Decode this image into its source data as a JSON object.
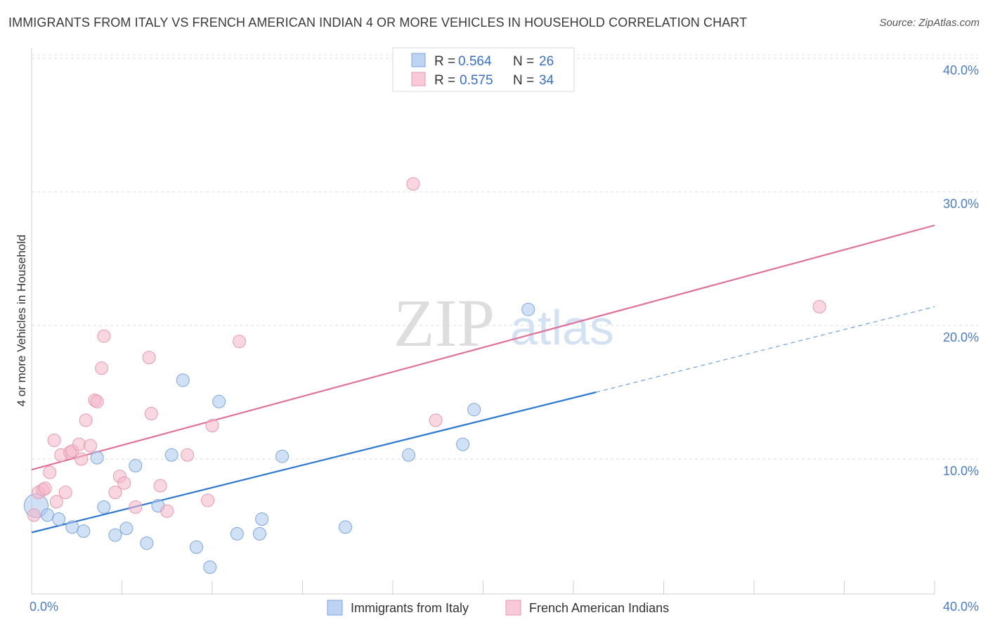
{
  "header": {
    "title": "IMMIGRANTS FROM ITALY VS FRENCH AMERICAN INDIAN 4 OR MORE VEHICLES IN HOUSEHOLD CORRELATION CHART",
    "source": "Source: ZipAtlas.com"
  },
  "watermark": {
    "zip": "ZIP",
    "atlas": "atlas"
  },
  "chart_data": {
    "type": "scatter",
    "title": "IMMIGRANTS FROM ITALY VS FRENCH AMERICAN INDIAN 4 OR MORE VEHICLES IN HOUSEHOLD CORRELATION CHART",
    "xlabel": "",
    "ylabel": "4 or more Vehicles in Household",
    "xlim": [
      0,
      40
    ],
    "ylim": [
      0,
      40
    ],
    "x_tick_labels": [
      "0.0%",
      "40.0%"
    ],
    "y_ticks": [
      10,
      20,
      30,
      40
    ],
    "y_tick_labels": [
      "10.0%",
      "20.0%",
      "30.0%",
      "40.0%"
    ],
    "grid": "horizontal dashed",
    "legend_placement": "top-center",
    "series": [
      {
        "name": "Immigrants from Italy",
        "color": "#a9c8ef",
        "line_color": "#2f78d2",
        "R": "0.564",
        "N": "26",
        "points": [
          [
            0.2,
            6.5
          ],
          [
            0.7,
            5.8
          ],
          [
            1.2,
            5.5
          ],
          [
            1.8,
            4.9
          ],
          [
            2.3,
            4.6
          ],
          [
            2.9,
            10.1
          ],
          [
            3.2,
            6.4
          ],
          [
            3.7,
            4.3
          ],
          [
            4.2,
            4.8
          ],
          [
            4.6,
            9.5
          ],
          [
            5.1,
            3.7
          ],
          [
            5.6,
            6.5
          ],
          [
            6.2,
            10.3
          ],
          [
            6.7,
            15.9
          ],
          [
            7.3,
            3.4
          ],
          [
            7.9,
            1.9
          ],
          [
            8.3,
            14.3
          ],
          [
            9.1,
            4.4
          ],
          [
            10.1,
            4.4
          ],
          [
            10.2,
            5.5
          ],
          [
            11.1,
            10.2
          ],
          [
            13.9,
            4.9
          ],
          [
            16.7,
            10.3
          ],
          [
            19.1,
            11.1
          ],
          [
            19.6,
            13.7
          ],
          [
            22.0,
            21.2
          ]
        ],
        "trend": {
          "x": [
            0,
            25
          ],
          "y": [
            4.5,
            15.0
          ],
          "dashed_extension": {
            "x": [
              25,
              40
            ],
            "y": [
              15.0,
              21.4
            ]
          }
        }
      },
      {
        "name": "French American Indians",
        "color": "#f4b6c9",
        "line_color": "#e0719b",
        "R": "0.575",
        "N": "34",
        "points": [
          [
            0.1,
            5.8
          ],
          [
            0.3,
            7.5
          ],
          [
            0.5,
            7.7
          ],
          [
            0.6,
            7.8
          ],
          [
            0.8,
            9.0
          ],
          [
            1.0,
            11.4
          ],
          [
            1.1,
            6.8
          ],
          [
            1.3,
            10.3
          ],
          [
            1.5,
            7.5
          ],
          [
            1.7,
            10.5
          ],
          [
            1.8,
            10.6
          ],
          [
            2.2,
            10.0
          ],
          [
            2.1,
            11.1
          ],
          [
            2.4,
            12.9
          ],
          [
            2.6,
            11.0
          ],
          [
            2.8,
            14.4
          ],
          [
            2.9,
            14.3
          ],
          [
            3.1,
            16.8
          ],
          [
            3.2,
            19.2
          ],
          [
            3.7,
            7.5
          ],
          [
            3.9,
            8.7
          ],
          [
            4.1,
            8.2
          ],
          [
            4.6,
            6.4
          ],
          [
            5.2,
            17.6
          ],
          [
            5.3,
            13.4
          ],
          [
            5.7,
            8.0
          ],
          [
            6.0,
            6.1
          ],
          [
            6.9,
            10.3
          ],
          [
            7.8,
            6.9
          ],
          [
            8.0,
            12.5
          ],
          [
            9.2,
            18.8
          ],
          [
            16.9,
            30.6
          ],
          [
            17.9,
            12.9
          ],
          [
            34.9,
            21.4
          ]
        ],
        "trend": {
          "x": [
            0,
            40
          ],
          "y": [
            9.2,
            27.5
          ]
        }
      }
    ]
  }
}
